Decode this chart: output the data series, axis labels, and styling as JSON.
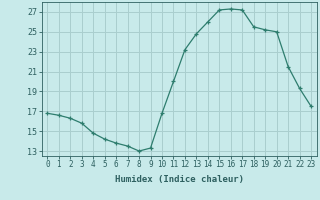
{
  "x": [
    0,
    1,
    2,
    3,
    4,
    5,
    6,
    7,
    8,
    9,
    10,
    11,
    12,
    13,
    14,
    15,
    16,
    17,
    18,
    19,
    20,
    21,
    22,
    23
  ],
  "y": [
    16.8,
    16.6,
    16.3,
    15.8,
    14.8,
    14.2,
    13.8,
    13.5,
    13.0,
    13.3,
    16.8,
    20.0,
    23.2,
    24.8,
    26.0,
    27.2,
    27.3,
    27.2,
    25.5,
    25.2,
    25.0,
    21.5,
    19.3,
    17.5
  ],
  "line_color": "#2e7d6e",
  "marker": "+",
  "bg_color": "#c8eaea",
  "grid_color": "#aacece",
  "tick_color": "#2e6060",
  "xlabel": "Humidex (Indice chaleur)",
  "xlabel_fontsize": 6.5,
  "ylim": [
    12.5,
    28.0
  ],
  "xlim": [
    -0.5,
    23.5
  ],
  "yticks": [
    13,
    15,
    17,
    19,
    21,
    23,
    25,
    27
  ],
  "xticks": [
    0,
    1,
    2,
    3,
    4,
    5,
    6,
    7,
    8,
    9,
    10,
    11,
    12,
    13,
    14,
    15,
    16,
    17,
    18,
    19,
    20,
    21,
    22,
    23
  ],
  "tick_fontsize": 5.5,
  "ytick_fontsize": 6.0
}
